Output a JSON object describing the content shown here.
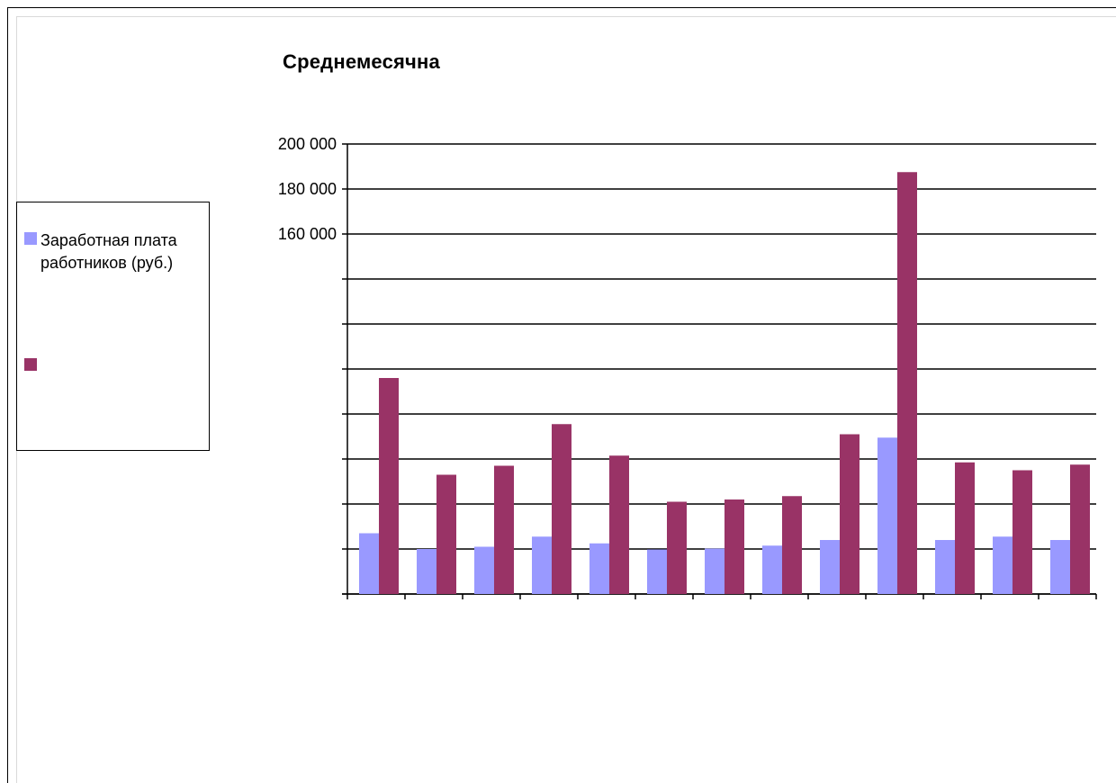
{
  "chart_data": {
    "type": "bar",
    "title": "Среднемесячна",
    "categories": [
      "",
      "",
      "",
      "",
      "",
      "",
      "",
      "",
      "",
      "",
      "",
      "",
      ""
    ],
    "series": [
      {
        "name": "Заработная плата работников (руб.)",
        "color": "#9999ff",
        "values": [
          27000,
          20000,
          21000,
          25500,
          22500,
          19800,
          20200,
          21500,
          24000,
          69500,
          24000,
          25500,
          24000
        ]
      },
      {
        "name": "",
        "color": "#993366",
        "values": [
          96000,
          53000,
          57000,
          75500,
          61500,
          41000,
          42000,
          43500,
          71000,
          187500,
          58500,
          55000,
          57500
        ]
      }
    ],
    "ylim": [
      0,
      200000
    ],
    "yticks": [
      0,
      20000,
      40000,
      60000,
      80000,
      100000,
      120000,
      140000,
      160000,
      180000,
      200000
    ],
    "ytick_labels": [
      "",
      "",
      "",
      "",
      "",
      "",
      "",
      "",
      "160 000",
      "180 000",
      "200 000"
    ],
    "grid": true,
    "legend_position": "left"
  }
}
